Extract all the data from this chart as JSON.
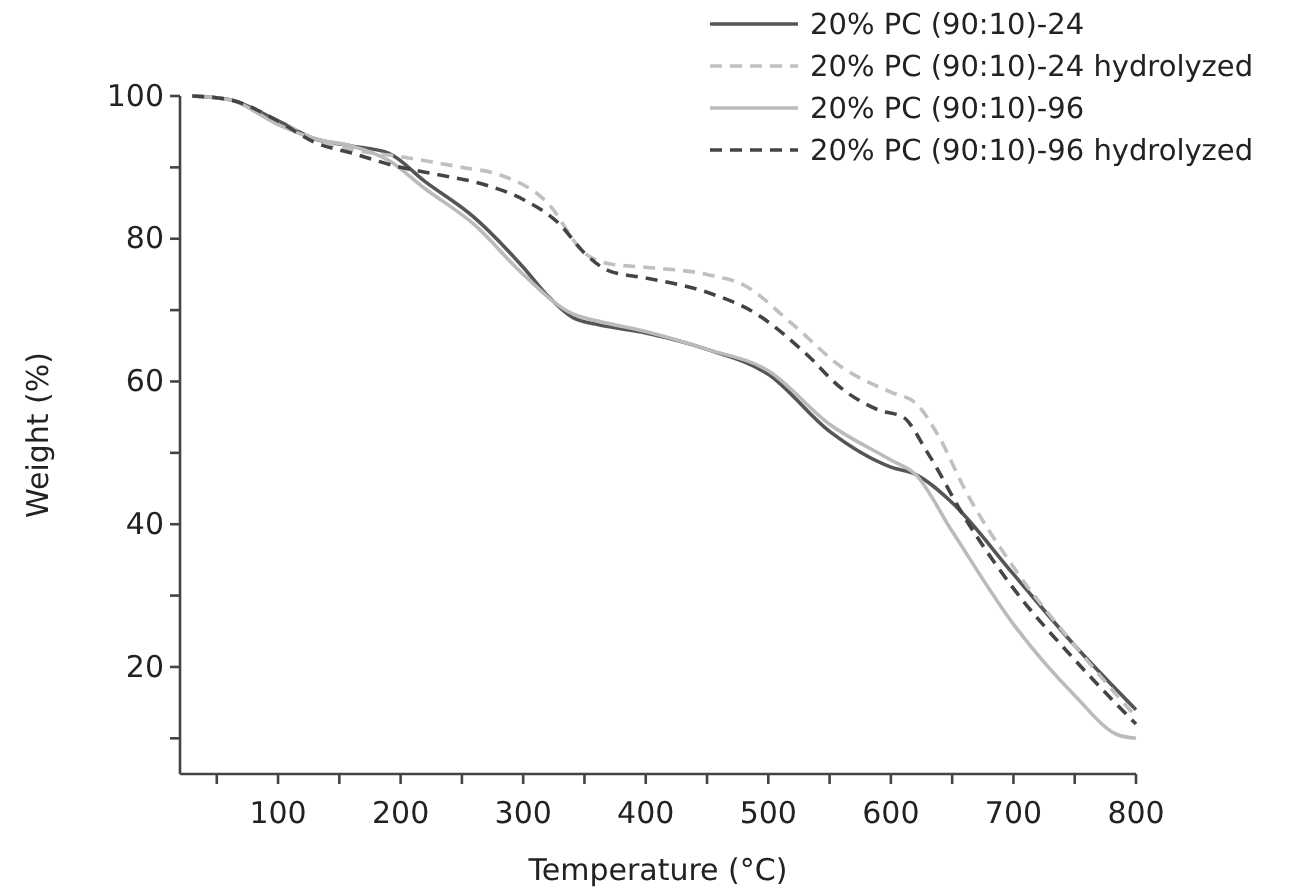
{
  "chart_data": {
    "type": "line",
    "xlabel": "Temperature (°C)",
    "ylabel": "Weight (%)",
    "xlim": [
      20,
      800
    ],
    "ylim": [
      5,
      100
    ],
    "xticks": [
      {
        "value": 50,
        "label": null
      },
      100,
      {
        "value": 150,
        "label": null
      },
      200,
      {
        "value": 250,
        "label": null
      },
      300,
      {
        "value": 350,
        "label": null
      },
      400,
      {
        "value": 450,
        "label": null
      },
      500,
      {
        "value": 550,
        "label": null
      },
      600,
      {
        "value": 650,
        "label": null
      },
      700,
      {
        "value": 750,
        "label": null
      },
      800
    ],
    "yticks": [
      {
        "value": 10,
        "label": null
      },
      20,
      {
        "value": 30,
        "label": null
      },
      40,
      {
        "value": 50,
        "label": null
      },
      60,
      {
        "value": 70,
        "label": null
      },
      80,
      {
        "value": 90,
        "label": null
      },
      100
    ],
    "grid": false,
    "legend": "top right",
    "series": [
      {
        "name": "20% PC (90:10)-24",
        "color": "#555555",
        "line_style": "solid",
        "x": [
          30,
          60,
          100,
          130,
          160,
          190,
          220,
          260,
          300,
          320,
          340,
          360,
          400,
          450,
          500,
          550,
          600,
          620,
          650,
          700,
          750,
          800
        ],
        "values": [
          100,
          99.5,
          96.5,
          94,
          93,
          92,
          88,
          83,
          76,
          72,
          69,
          68,
          66.8,
          64.5,
          61,
          53,
          48,
          47,
          43,
          33,
          23,
          14
        ]
      },
      {
        "name": "20% PC (90:10)-24 hydrolyzed",
        "color": "#c0c0c0",
        "line_style": "dashed",
        "x": [
          30,
          60,
          100,
          130,
          160,
          200,
          250,
          280,
          320,
          350,
          370,
          400,
          450,
          480,
          520,
          560,
          600,
          620,
          640,
          660,
          700,
          750,
          800
        ],
        "values": [
          100,
          99.5,
          96.5,
          94,
          92.5,
          91.5,
          90,
          89,
          85,
          78,
          76.5,
          76,
          75,
          73.5,
          68,
          62,
          58.5,
          57,
          52,
          45,
          34,
          23,
          13
        ]
      },
      {
        "name": "20% PC (90:10)-96",
        "color": "#bbbbbb",
        "line_style": "solid",
        "x": [
          30,
          60,
          100,
          130,
          160,
          190,
          220,
          260,
          300,
          340,
          360,
          400,
          450,
          500,
          550,
          600,
          620,
          650,
          700,
          750,
          785,
          800
        ],
        "values": [
          100,
          99.5,
          96,
          94,
          93,
          91,
          87,
          82,
          75,
          69.5,
          68.5,
          67,
          64.5,
          61.5,
          54,
          49,
          47,
          39,
          26,
          16,
          10.5,
          10
        ]
      },
      {
        "name": "20% PC (90:10)-96 hydrolyzed",
        "color": "#444444",
        "line_style": "dashed",
        "x": [
          30,
          60,
          100,
          130,
          160,
          200,
          230,
          270,
          300,
          330,
          350,
          370,
          400,
          450,
          490,
          530,
          560,
          590,
          610,
          630,
          660,
          700,
          750,
          800
        ],
        "values": [
          100,
          99.5,
          96.5,
          93.5,
          92,
          90,
          89,
          87.5,
          85.5,
          82,
          78,
          75.5,
          74.5,
          72.5,
          69.5,
          64,
          59,
          56,
          55,
          50,
          41,
          31,
          21,
          12
        ]
      }
    ]
  }
}
